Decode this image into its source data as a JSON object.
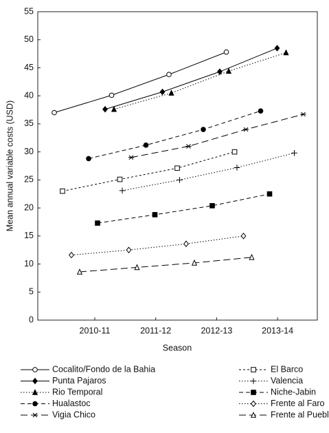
{
  "chart_data": {
    "type": "line",
    "y_label": "Mean annual variable costs (USD)",
    "x_label": "Season",
    "categories": [
      "2010-11",
      "2011-12",
      "2012-13",
      "2013-14"
    ],
    "ylim": [
      0,
      55
    ],
    "yticks": [
      0,
      5,
      10,
      15,
      20,
      25,
      30,
      35,
      40,
      45,
      50,
      55
    ],
    "series": [
      {
        "name": "Cocalito/Fondo de la Bahia",
        "color": "#000000",
        "marker": "circle-open",
        "dash": "solid",
        "values": [
          37,
          40.1,
          43.8,
          47.8
        ]
      },
      {
        "name": "Punta Pajaros",
        "color": "#000000",
        "marker": "diamond-filled",
        "dash": "solid",
        "values": [
          37.6,
          40.7,
          44.3,
          48.5
        ]
      },
      {
        "name": "Rio Temporal",
        "color": "#000000",
        "marker": "triangle-filled",
        "dash": "dotted",
        "values": [
          37.6,
          40.5,
          44.4,
          47.7
        ]
      },
      {
        "name": "Hualastoc",
        "color": "#000000",
        "marker": "circle-filled",
        "dash": "dashed",
        "values": [
          28.8,
          31.2,
          34.0,
          37.3
        ]
      },
      {
        "name": "Vigia Chico",
        "color": "#000000",
        "marker": "asterisk",
        "dash": "long-dash",
        "values": [
          29,
          31.0,
          34.0,
          36.7
        ]
      },
      {
        "name": "El Barco",
        "color": "#000000",
        "marker": "square-open",
        "dash": "short-dash",
        "values": [
          23,
          25.1,
          27.1,
          30.0
        ]
      },
      {
        "name": "Valencia",
        "color": "#000000",
        "marker": "plus",
        "dash": "dotted",
        "values": [
          23.1,
          25.0,
          27.2,
          29.8
        ]
      },
      {
        "name": "Niche-Jabin",
        "color": "#000000",
        "marker": "square-filled",
        "dash": "dashed",
        "values": [
          17.3,
          18.8,
          20.4,
          22.5
        ]
      },
      {
        "name": "Frente al Faro",
        "color": "#000000",
        "marker": "diamond-open",
        "dash": "dotted",
        "values": [
          11.6,
          12.5,
          13.6,
          15.0
        ]
      },
      {
        "name": "Frente al Pueblo",
        "color": "#000000",
        "marker": "triangle-open",
        "dash": "long-dash",
        "values": [
          8.6,
          9.4,
          10.2,
          11.2
        ]
      }
    ]
  }
}
